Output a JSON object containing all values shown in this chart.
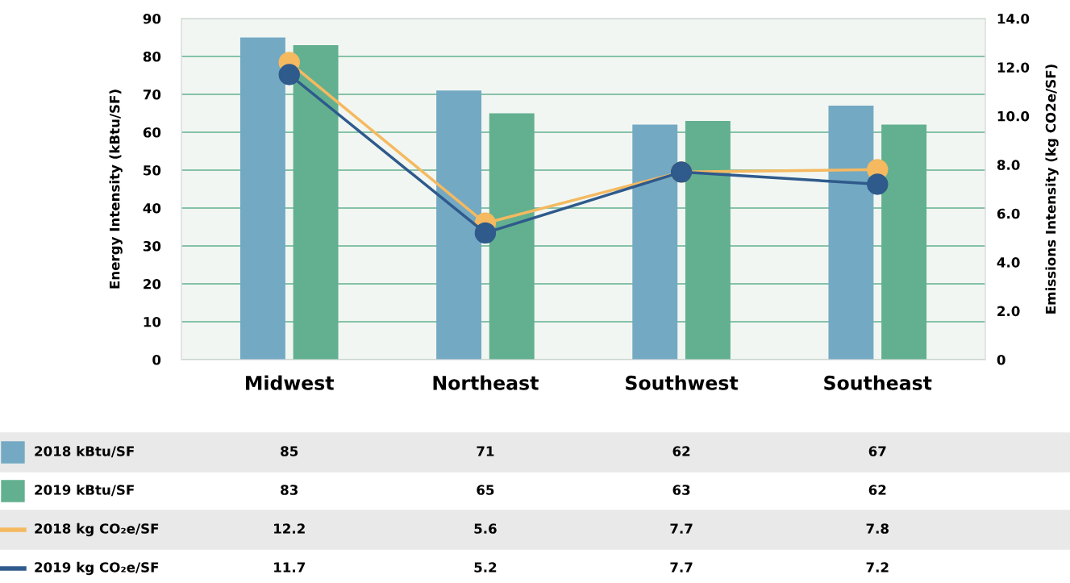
{
  "chart_data": {
    "type": "bar",
    "categories": [
      "Midwest",
      "Northeast",
      "Southwest",
      "Southeast"
    ],
    "ylabel": "Energy Intensity (kBtu/SF)",
    "y2label": "Emissions Intensity (kg CO2e/SF)",
    "ylim": [
      0,
      90
    ],
    "yticks": [
      0,
      10,
      20,
      30,
      40,
      50,
      60,
      70,
      80,
      90
    ],
    "y2lim": [
      0,
      14
    ],
    "y2ticks": [
      0,
      {
        "value": 2,
        "label": "2.0"
      },
      {
        "value": 4,
        "label": "4.0"
      },
      {
        "value": 6,
        "label": "6.0"
      },
      {
        "value": 8,
        "label": "8.0"
      },
      {
        "value": 10,
        "label": "10.0"
      },
      {
        "value": 12,
        "label": "12.0"
      },
      {
        "value": 14,
        "label": "14.0"
      }
    ],
    "grid": "y",
    "legend": "bottom",
    "data_labels": true,
    "series": [
      {
        "name": "2018 kBtu/SF",
        "color": "#74a9c3",
        "values": [
          85,
          71,
          62,
          67
        ]
      },
      {
        "name": "2019 kBtu/SF",
        "color": "#62b08f",
        "values": [
          83,
          65,
          63,
          62
        ]
      },
      {
        "name": "2018 kg CO₂e/SF",
        "type": "line",
        "axis": "y2",
        "marker": "circle",
        "color": "#f5b960",
        "values": [
          12.2,
          5.6,
          7.7,
          7.8
        ]
      },
      {
        "name": "2019 kg CO₂e/SF",
        "type": "line",
        "axis": "y2",
        "marker": "circle",
        "color": "#2f5a8c",
        "values": [
          11.7,
          5.2,
          7.7,
          7.2
        ]
      }
    ]
  }
}
